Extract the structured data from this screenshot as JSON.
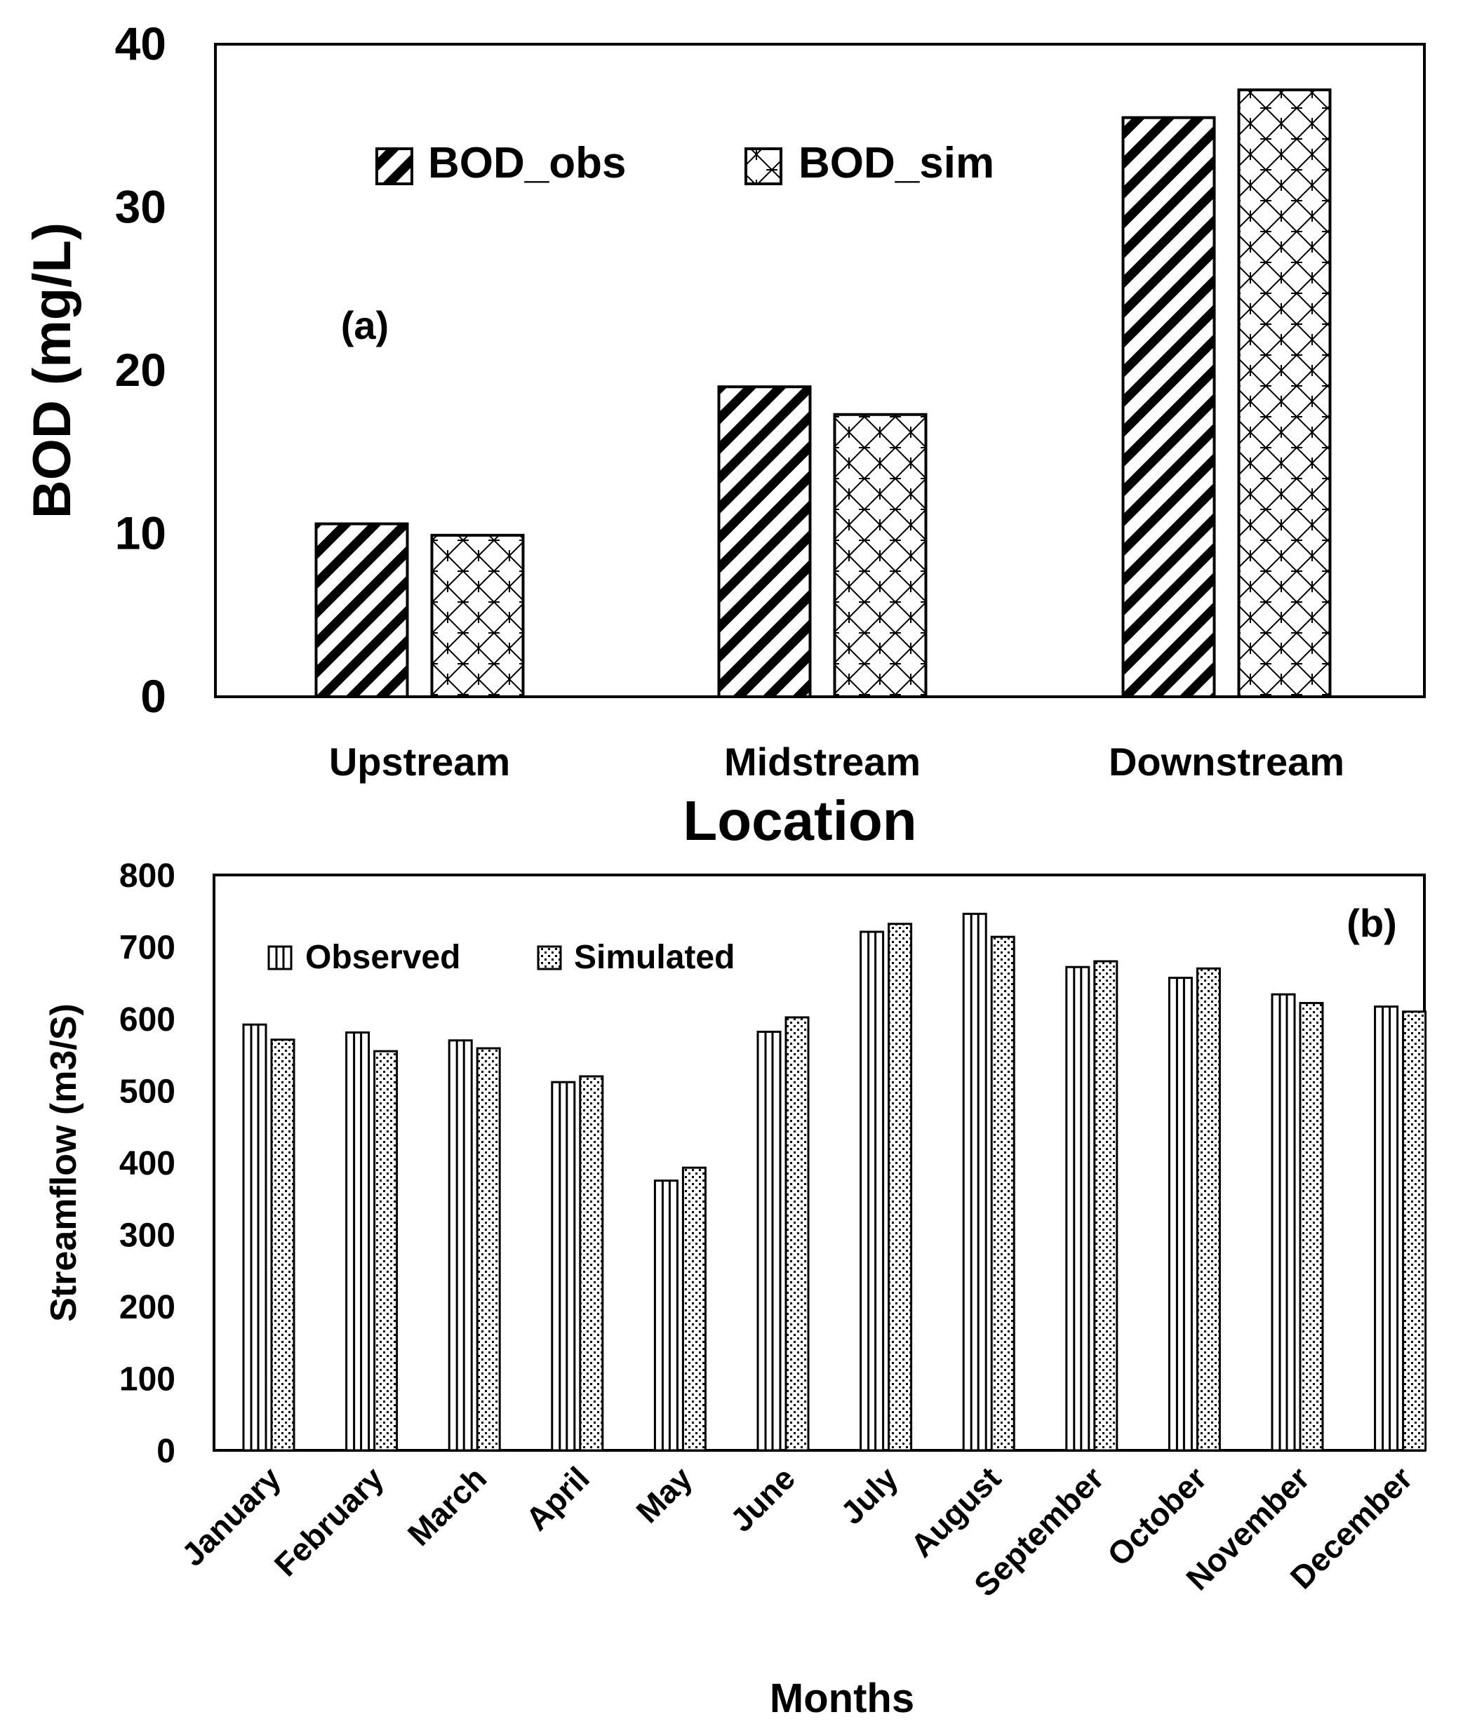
{
  "chart_data": [
    {
      "type": "bar",
      "panel_label": "(a)",
      "title": "",
      "xlabel": "Location",
      "ylabel": "BOD (mg/L)",
      "categories": [
        "Upstream",
        "Midstream",
        "Downstream"
      ],
      "series": [
        {
          "name": "BOD_obs",
          "pattern": "diagonal-stripes",
          "values": [
            10.6,
            19.0,
            35.5
          ]
        },
        {
          "name": "BOD_sim",
          "pattern": "lattice",
          "values": [
            9.9,
            17.3,
            37.2
          ]
        }
      ],
      "ylim": [
        0,
        40
      ],
      "yticks": [
        0,
        10,
        20,
        30,
        40
      ],
      "grid": false,
      "legend_position": "top"
    },
    {
      "type": "bar",
      "panel_label": "(b)",
      "title": "",
      "xlabel": "Months",
      "ylabel": "Streamflow (m3/S)",
      "categories": [
        "January",
        "February",
        "March",
        "April",
        "May",
        "June",
        "July",
        "August",
        "September",
        "October",
        "November",
        "December"
      ],
      "series": [
        {
          "name": "Observed",
          "pattern": "vertical-lines",
          "values": [
            592,
            581,
            570,
            512,
            375,
            582,
            721,
            746,
            672,
            657,
            634,
            617
          ]
        },
        {
          "name": "Simulated",
          "pattern": "dots",
          "values": [
            571,
            555,
            559,
            520,
            393,
            602,
            732,
            714,
            680,
            670,
            622,
            610
          ]
        }
      ],
      "ylim": [
        0,
        800
      ],
      "yticks": [
        0,
        100,
        200,
        300,
        400,
        500,
        600,
        700,
        800
      ],
      "grid": false,
      "legend_position": "top-left"
    }
  ],
  "colors": {
    "ink": "#000000",
    "background": "#ffffff"
  }
}
